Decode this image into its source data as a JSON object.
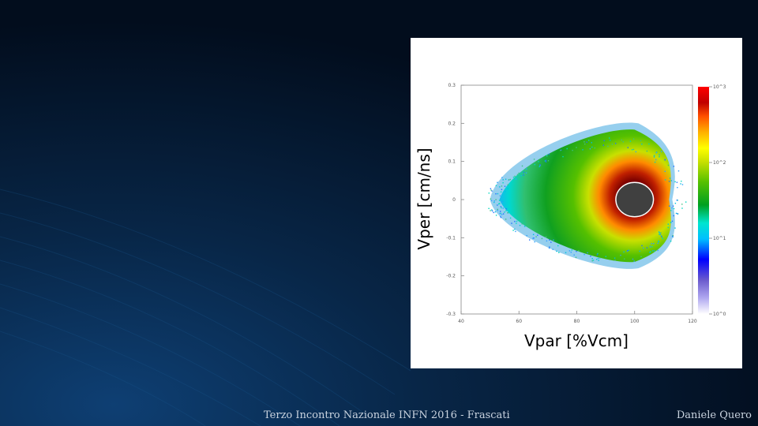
{
  "colors": {
    "background": "#031326",
    "footer_text": "#c9d3df",
    "inner_disk": "#404040"
  },
  "footer": {
    "left": "Terzo Incontro Nazionale INFN 2016 - Frascati",
    "right": "Daniele Quero"
  },
  "chart_data": {
    "type": "heatmap",
    "title": "",
    "xlabel": "Vpar [%Vcm]",
    "ylabel": "Vper [cm/ns]",
    "xlim": [
      40,
      120
    ],
    "ylim": [
      -0.3,
      0.3
    ],
    "x_ticks": [
      "40",
      "60",
      "80",
      "100",
      "120"
    ],
    "y_ticks": [
      "0.3",
      "0.2",
      "0.1",
      "0",
      "-0.1",
      "-0.2",
      "-0.3"
    ],
    "grid": false,
    "colorbar": {
      "scale": "log",
      "tick_labels": [
        "10^0",
        "10^1",
        "10^2",
        "10^3"
      ],
      "colors": [
        "#ffffff",
        "#6a5acd",
        "#0000ff",
        "#00bfff",
        "#00e5d0",
        "#00a020",
        "#55c000",
        "#c8e000",
        "#ffff00",
        "#ffb000",
        "#ff5000",
        "#c00000",
        "#ff0000"
      ]
    },
    "distribution": {
      "shape": "asymmetric lobe, tail extending to low Vpar",
      "peak_x": 100,
      "peak_y": 0,
      "x_extent": [
        50,
        113
      ],
      "y_extent": [
        -0.18,
        0.2
      ],
      "masked_center": {
        "x": 100,
        "y": 0,
        "radius_x": 6.5,
        "radius_y": 0.045
      }
    }
  }
}
